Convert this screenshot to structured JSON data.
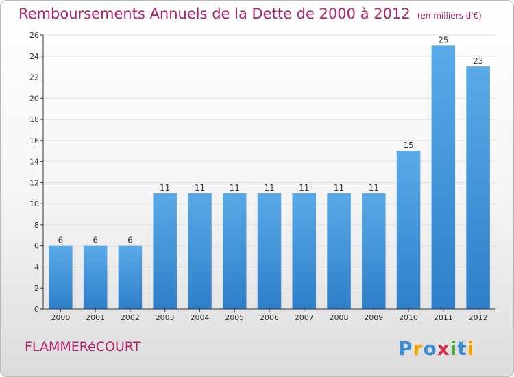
{
  "title": "Remboursements Annuels de la Dette de 2000 à 2012",
  "unit": "(en milliers d'€)",
  "commune": "FLAMMERéCOURT",
  "logo": "Proxiti",
  "colors": {
    "bar_top": "#5aaae8",
    "bar_bottom": "#2e7fc8",
    "title": "#b0226a",
    "axis": "#333333",
    "grid": "#dddddd"
  },
  "chart_data": {
    "type": "bar",
    "title": "Remboursements Annuels de la Dette de 2000 à 2012",
    "xlabel": "",
    "ylabel": "",
    "ylim": [
      0,
      26
    ],
    "yticks": [
      0,
      2,
      4,
      6,
      8,
      10,
      12,
      14,
      16,
      18,
      20,
      22,
      24,
      26
    ],
    "categories": [
      "2000",
      "2001",
      "2002",
      "2003",
      "2004",
      "2005",
      "2006",
      "2007",
      "2008",
      "2009",
      "2010",
      "2011",
      "2012"
    ],
    "values": [
      6,
      6,
      6,
      11,
      11,
      11,
      11,
      11,
      11,
      11,
      15,
      25,
      23
    ],
    "grid": true,
    "legend": "none"
  }
}
